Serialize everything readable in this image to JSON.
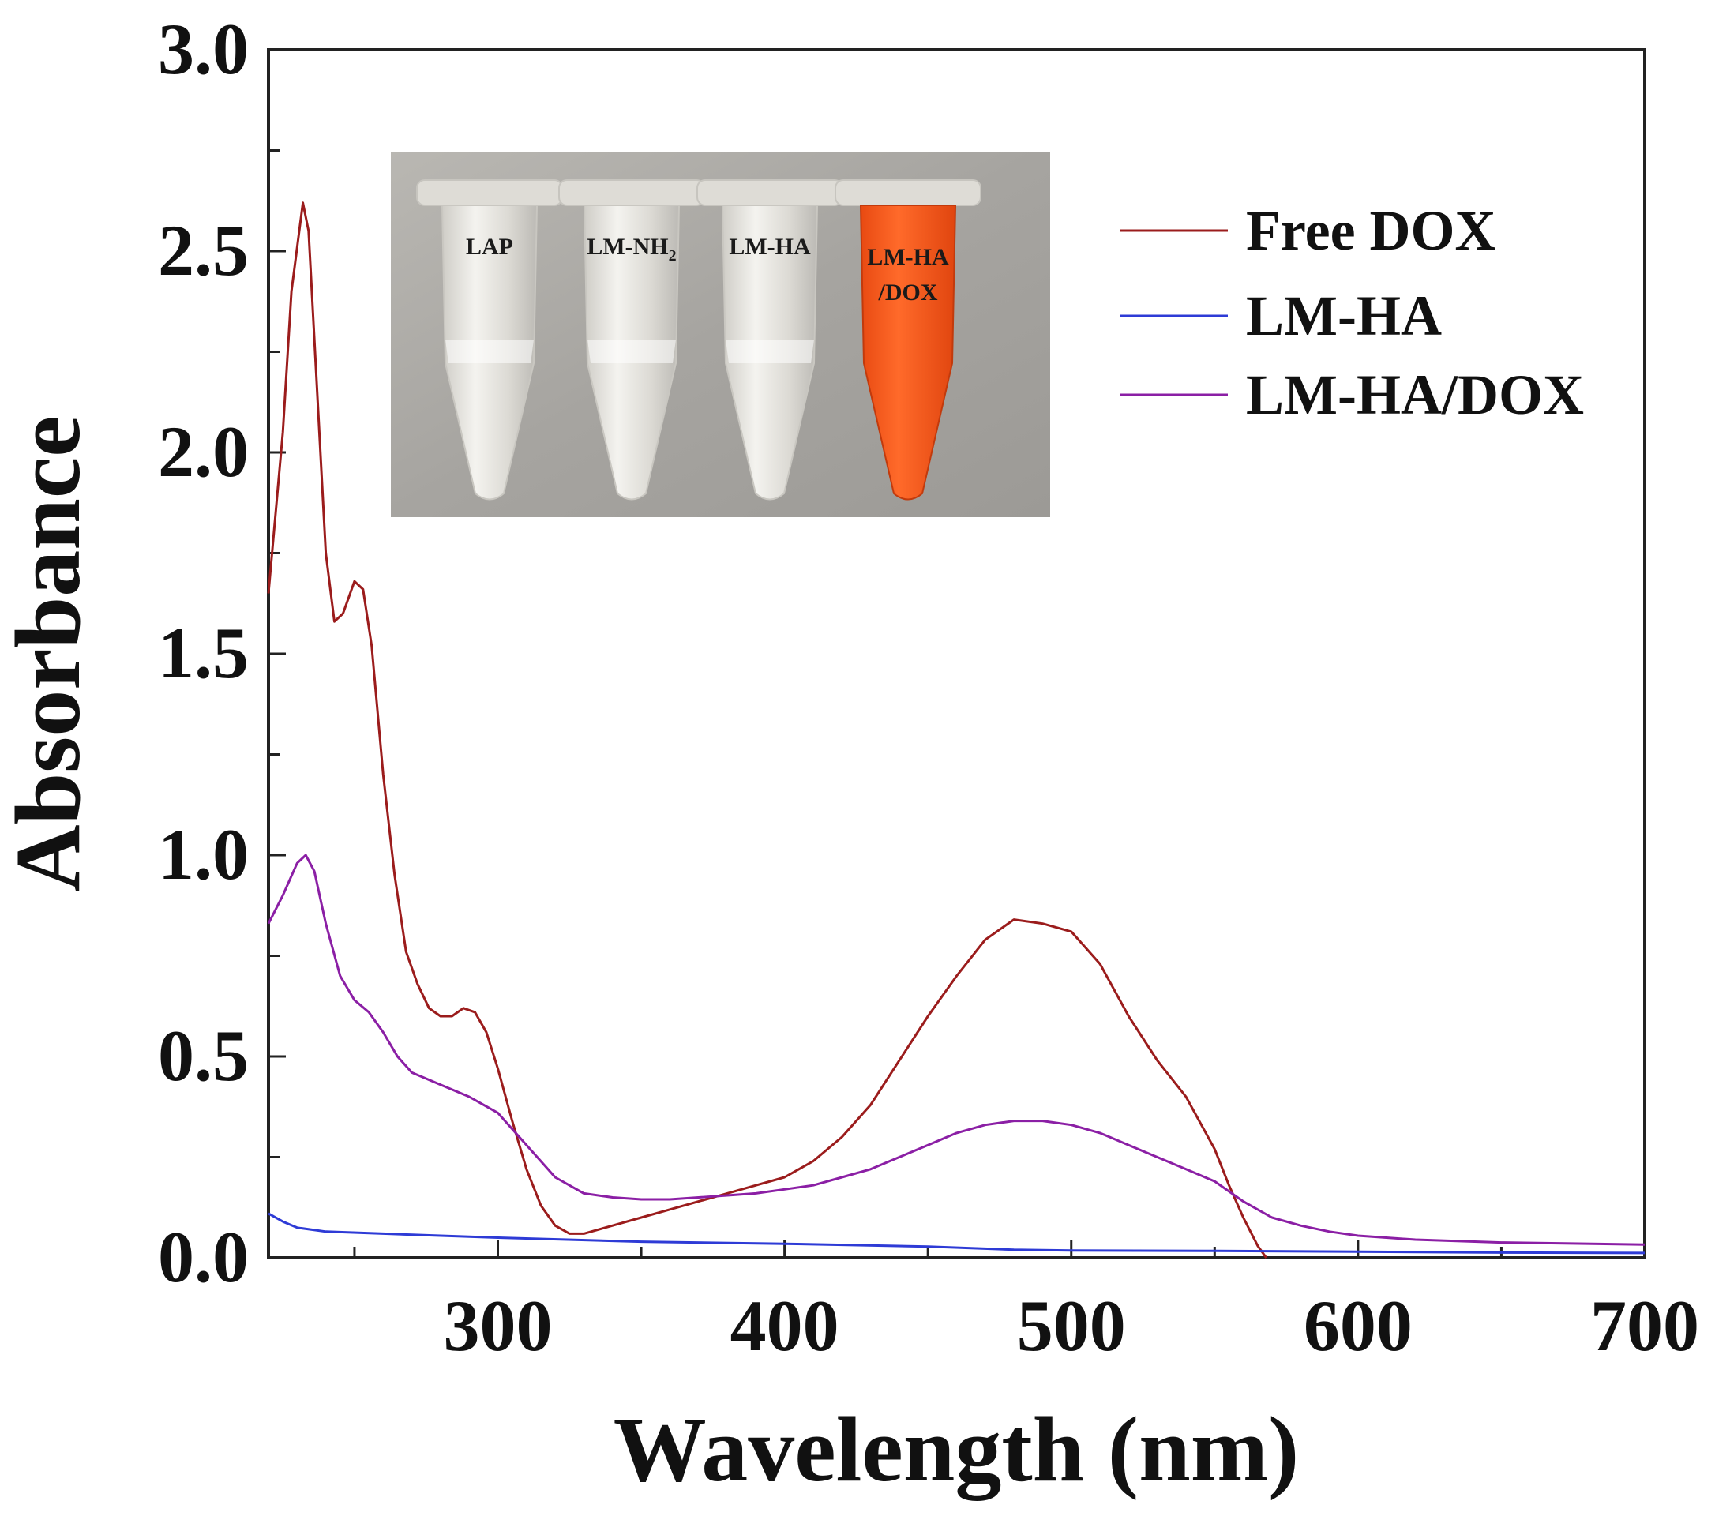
{
  "chart_data": {
    "type": "line",
    "title": "",
    "xlabel": "Wavelength (nm)",
    "ylabel": "Absorbance",
    "xlim": [
      220,
      700
    ],
    "ylim": [
      0,
      3.0
    ],
    "x_ticks": [
      300,
      400,
      500,
      600,
      700
    ],
    "y_ticks": [
      0,
      0.5,
      1.0,
      1.5,
      2.0,
      2.5,
      3.0
    ],
    "x_tick_labels": [
      "300",
      "400",
      "500",
      "600",
      "700"
    ],
    "y_tick_labels": [
      "0.0",
      "0.5",
      "1.0",
      "1.5",
      "2.0",
      "2.5",
      "3.0"
    ],
    "grid": false,
    "legend_position": "top-right",
    "series": [
      {
        "name": "Free DOX",
        "color": "#9b1c1c",
        "points": [
          [
            220,
            1.65
          ],
          [
            225,
            2.05
          ],
          [
            228,
            2.4
          ],
          [
            232,
            2.62
          ],
          [
            234,
            2.55
          ],
          [
            237,
            2.15
          ],
          [
            240,
            1.75
          ],
          [
            243,
            1.58
          ],
          [
            246,
            1.6
          ],
          [
            250,
            1.68
          ],
          [
            253,
            1.66
          ],
          [
            256,
            1.52
          ],
          [
            260,
            1.2
          ],
          [
            264,
            0.95
          ],
          [
            268,
            0.76
          ],
          [
            272,
            0.68
          ],
          [
            276,
            0.62
          ],
          [
            280,
            0.6
          ],
          [
            284,
            0.6
          ],
          [
            288,
            0.62
          ],
          [
            292,
            0.61
          ],
          [
            296,
            0.56
          ],
          [
            300,
            0.47
          ],
          [
            305,
            0.34
          ],
          [
            310,
            0.22
          ],
          [
            315,
            0.13
          ],
          [
            320,
            0.08
          ],
          [
            325,
            0.06
          ],
          [
            330,
            0.06
          ],
          [
            340,
            0.08
          ],
          [
            350,
            0.1
          ],
          [
            360,
            0.12
          ],
          [
            370,
            0.14
          ],
          [
            380,
            0.16
          ],
          [
            390,
            0.18
          ],
          [
            400,
            0.2
          ],
          [
            410,
            0.24
          ],
          [
            420,
            0.3
          ],
          [
            430,
            0.38
          ],
          [
            440,
            0.49
          ],
          [
            450,
            0.6
          ],
          [
            460,
            0.7
          ],
          [
            470,
            0.79
          ],
          [
            480,
            0.84
          ],
          [
            490,
            0.83
          ],
          [
            500,
            0.81
          ],
          [
            510,
            0.73
          ],
          [
            520,
            0.6
          ],
          [
            530,
            0.49
          ],
          [
            540,
            0.4
          ],
          [
            550,
            0.27
          ],
          [
            555,
            0.18
          ],
          [
            560,
            0.1
          ],
          [
            565,
            0.03
          ],
          [
            568,
            0.0
          ]
        ]
      },
      {
        "name": "LM-HA",
        "color": "#2e3bd6",
        "points": [
          [
            220,
            0.11
          ],
          [
            225,
            0.09
          ],
          [
            230,
            0.075
          ],
          [
            240,
            0.065
          ],
          [
            260,
            0.06
          ],
          [
            280,
            0.055
          ],
          [
            300,
            0.05
          ],
          [
            350,
            0.04
          ],
          [
            400,
            0.035
          ],
          [
            450,
            0.028
          ],
          [
            480,
            0.02
          ],
          [
            500,
            0.018
          ],
          [
            550,
            0.017
          ],
          [
            600,
            0.015
          ],
          [
            650,
            0.013
          ],
          [
            700,
            0.012
          ]
        ]
      },
      {
        "name": "LM-HA/DOX",
        "color": "#8b1fa5",
        "points": [
          [
            220,
            0.83
          ],
          [
            225,
            0.9
          ],
          [
            230,
            0.98
          ],
          [
            233,
            1.0
          ],
          [
            236,
            0.96
          ],
          [
            240,
            0.83
          ],
          [
            245,
            0.7
          ],
          [
            250,
            0.64
          ],
          [
            255,
            0.61
          ],
          [
            260,
            0.56
          ],
          [
            265,
            0.5
          ],
          [
            270,
            0.46
          ],
          [
            280,
            0.43
          ],
          [
            290,
            0.4
          ],
          [
            300,
            0.36
          ],
          [
            310,
            0.28
          ],
          [
            320,
            0.2
          ],
          [
            330,
            0.16
          ],
          [
            340,
            0.15
          ],
          [
            350,
            0.145
          ],
          [
            360,
            0.145
          ],
          [
            370,
            0.15
          ],
          [
            380,
            0.155
          ],
          [
            390,
            0.16
          ],
          [
            400,
            0.17
          ],
          [
            410,
            0.18
          ],
          [
            420,
            0.2
          ],
          [
            430,
            0.22
          ],
          [
            440,
            0.25
          ],
          [
            450,
            0.28
          ],
          [
            460,
            0.31
          ],
          [
            470,
            0.33
          ],
          [
            480,
            0.34
          ],
          [
            490,
            0.34
          ],
          [
            500,
            0.33
          ],
          [
            510,
            0.31
          ],
          [
            520,
            0.28
          ],
          [
            530,
            0.25
          ],
          [
            540,
            0.22
          ],
          [
            550,
            0.19
          ],
          [
            560,
            0.14
          ],
          [
            570,
            0.1
          ],
          [
            580,
            0.08
          ],
          [
            590,
            0.065
          ],
          [
            600,
            0.055
          ],
          [
            620,
            0.045
          ],
          [
            650,
            0.038
          ],
          [
            700,
            0.033
          ]
        ]
      }
    ]
  },
  "inset": {
    "description": "photo of four microcentrifuge tubes",
    "tubes": [
      {
        "label": "LAP",
        "liquid": "#e8e6dc"
      },
      {
        "label": "LM-NH",
        "subscript": "2",
        "liquid": "#eae8e0"
      },
      {
        "label": "LM-HA",
        "liquid": "#e9e7df"
      },
      {
        "label": "LM-HA",
        "label2": "/DOX",
        "liquid": "#ff5a1f"
      }
    ]
  },
  "colors": {
    "free_dox": "#9b1c1c",
    "lm_ha": "#2e3bd6",
    "lm_ha_dox": "#8b1fa5",
    "axis": "#222222"
  }
}
